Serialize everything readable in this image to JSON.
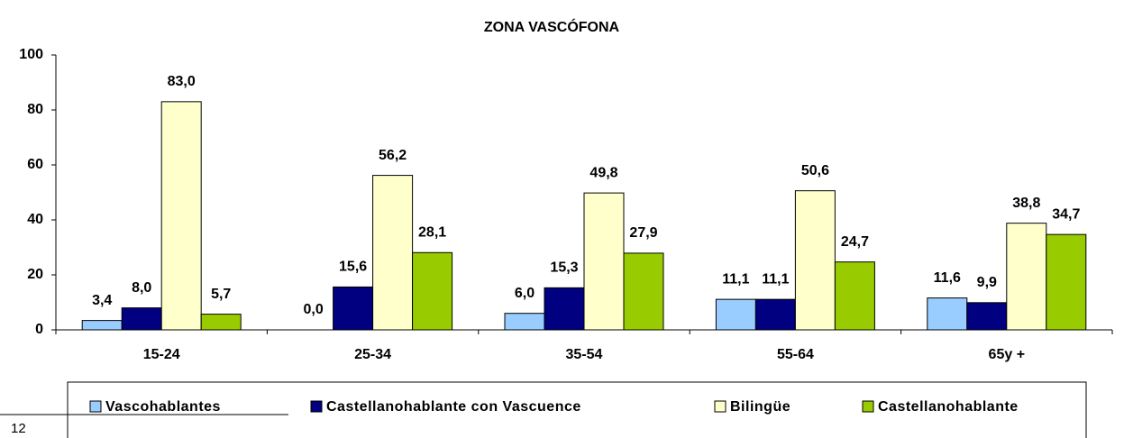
{
  "chart_data": {
    "type": "bar",
    "title": "ZONA VASCÓFONA",
    "categories": [
      "15-24",
      "25-34",
      "35-54",
      "55-64",
      "65y +"
    ],
    "series": [
      {
        "name": "Vascohablantes",
        "color": "#99ccff",
        "values": [
          3.4,
          0.0,
          6.0,
          11.1,
          11.6
        ],
        "value_labels": [
          "3,4",
          "0,0",
          "6,0",
          "11,1",
          "11,6"
        ]
      },
      {
        "name": "Castellanohablante con Vascuence",
        "color": "#000080",
        "values": [
          8.0,
          15.6,
          15.3,
          11.1,
          9.9
        ],
        "value_labels": [
          "8,0",
          "15,6",
          "15,3",
          "11,1",
          "9,9"
        ]
      },
      {
        "name": "Bilingüe",
        "color": "#ffffcc",
        "values": [
          83.0,
          56.2,
          49.8,
          50.6,
          38.8
        ],
        "value_labels": [
          "83,0",
          "56,2",
          "49,8",
          "50,6",
          "38,8"
        ]
      },
      {
        "name": "Castellanohablante",
        "color": "#99cc00",
        "values": [
          5.7,
          28.1,
          27.9,
          24.7,
          34.7
        ],
        "value_labels": [
          "5,7",
          "28,1",
          "27,9",
          "24,7",
          "34,7"
        ]
      }
    ],
    "ylim": [
      0,
      100
    ],
    "yticks": [
      0,
      20,
      40,
      60,
      80,
      100
    ],
    "grid": false
  },
  "page_number": "12"
}
